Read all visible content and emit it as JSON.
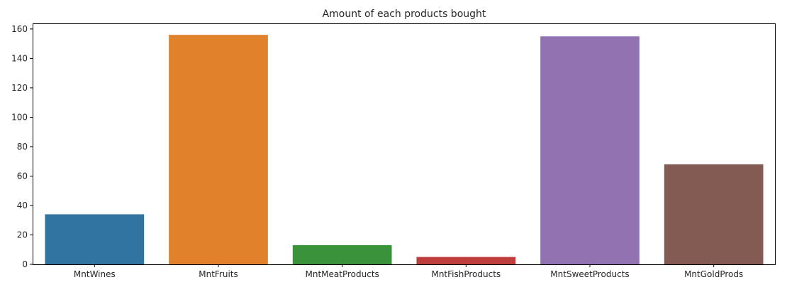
{
  "chart_data": {
    "type": "bar",
    "title": "Amount of each products bought",
    "xlabel": "",
    "ylabel": "",
    "categories": [
      "MntWines",
      "MntFruits",
      "MntMeatProducts",
      "MntFishProducts",
      "MntSweetProducts",
      "MntGoldProds"
    ],
    "values": [
      34,
      156,
      13,
      5,
      155,
      68
    ],
    "colors": [
      "#3274a1",
      "#e1812c",
      "#3a923a",
      "#c03d3e",
      "#9372b2",
      "#845b53"
    ],
    "ylim": [
      0,
      163.8
    ],
    "yticks": [
      0,
      20,
      40,
      60,
      80,
      100,
      120,
      140,
      160
    ],
    "grid": false,
    "legend": "none"
  }
}
